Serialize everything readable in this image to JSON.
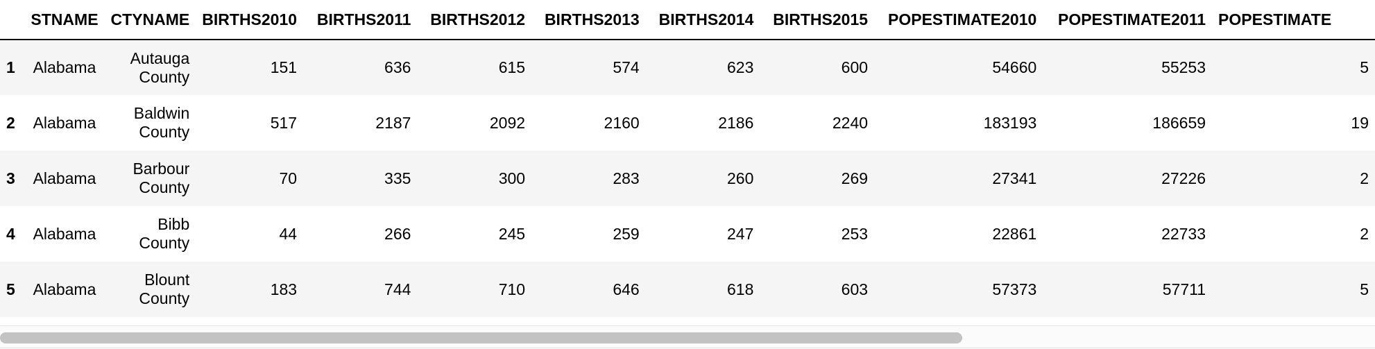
{
  "table": {
    "columns": [
      "STNAME",
      "CTYNAME",
      "BIRTHS2010",
      "BIRTHS2011",
      "BIRTHS2012",
      "BIRTHS2013",
      "BIRTHS2014",
      "BIRTHS2015",
      "POPESTIMATE2010",
      "POPESTIMATE2011",
      "POPESTIMATE"
    ],
    "rows": [
      {
        "index": "1",
        "cells": [
          "Alabama",
          "Autauga County",
          "151",
          "636",
          "615",
          "574",
          "623",
          "600",
          "54660",
          "55253",
          "5"
        ]
      },
      {
        "index": "2",
        "cells": [
          "Alabama",
          "Baldwin County",
          "517",
          "2187",
          "2092",
          "2160",
          "2186",
          "2240",
          "183193",
          "186659",
          "19"
        ]
      },
      {
        "index": "3",
        "cells": [
          "Alabama",
          "Barbour County",
          "70",
          "335",
          "300",
          "283",
          "260",
          "269",
          "27341",
          "27226",
          "2"
        ]
      },
      {
        "index": "4",
        "cells": [
          "Alabama",
          "Bibb County",
          "44",
          "266",
          "245",
          "259",
          "247",
          "253",
          "22861",
          "22733",
          "2"
        ]
      },
      {
        "index": "5",
        "cells": [
          "Alabama",
          "Blount County",
          "183",
          "744",
          "710",
          "646",
          "618",
          "603",
          "57373",
          "57711",
          "5"
        ]
      }
    ]
  },
  "scrollbar": {
    "position": 0.0,
    "visible_fraction": 0.7
  }
}
